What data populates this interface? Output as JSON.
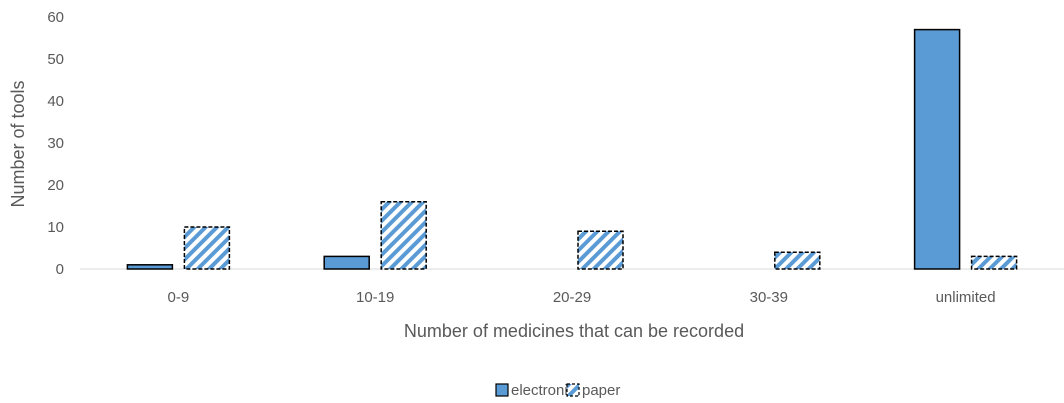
{
  "chart_data": {
    "type": "bar",
    "title": "",
    "xlabel": "Number of medicines that can be recorded",
    "ylabel": "Number of tools",
    "categories": [
      "0-9",
      "10-19",
      "20-29",
      "30-39",
      "unlimited"
    ],
    "series": [
      {
        "name": "electronic",
        "values": [
          1,
          3,
          0,
          0,
          57
        ],
        "color": "#5b9bd5",
        "style": "solid"
      },
      {
        "name": "paper",
        "values": [
          10,
          16,
          9,
          4,
          3
        ],
        "color": "#5b9bd5",
        "style": "hatched-dashed"
      }
    ],
    "ylim": [
      0,
      60
    ],
    "yticks": [
      0,
      10,
      20,
      30,
      40,
      50,
      60
    ],
    "grid": false,
    "legend": "bottom-center"
  },
  "colors": {
    "accent": "#5b9bd5",
    "axis": "#d9d9d9",
    "text": "#595959",
    "outline": "#000000"
  }
}
